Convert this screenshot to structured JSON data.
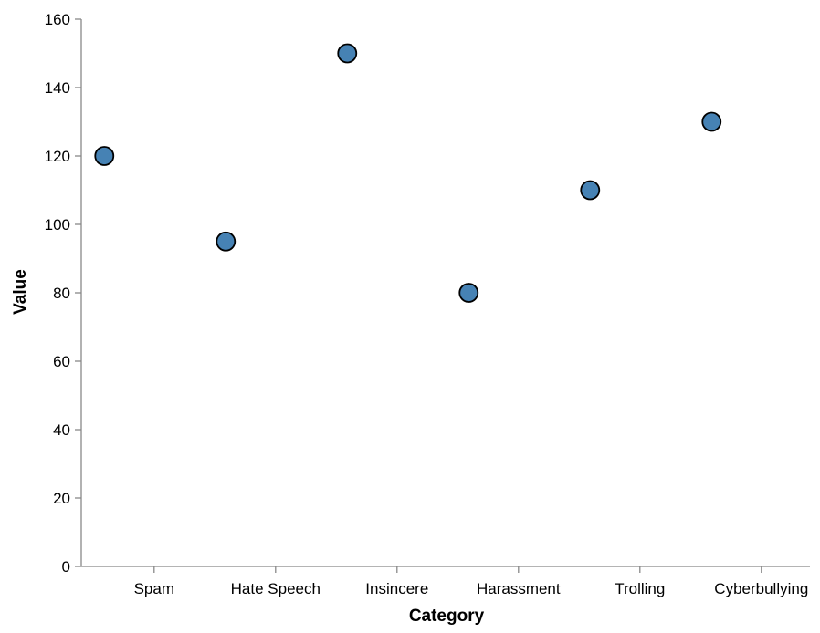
{
  "chart_data": {
    "type": "scatter",
    "xlabel": "Category",
    "ylabel": "Value",
    "categories": [
      "Spam",
      "Hate Speech",
      "Insincere",
      "Harassment",
      "Trolling",
      "Cyberbullying"
    ],
    "y_ticks": [
      "0",
      "20",
      "40",
      "60",
      "80",
      "100",
      "120",
      "140",
      "160"
    ],
    "ylim": [
      0,
      160
    ],
    "grid": false,
    "points": [
      {
        "category": "Spam",
        "value": 120
      },
      {
        "category": "Hate Speech",
        "value": 95
      },
      {
        "category": "Insincere",
        "value": 150
      },
      {
        "category": "Harassment",
        "value": 80
      },
      {
        "category": "Trolling",
        "value": 110
      },
      {
        "category": "Cyberbullying",
        "value": 130
      }
    ],
    "colors": {
      "point_fill": "#4682b4",
      "point_stroke": "#000000",
      "axis": "#888888"
    }
  }
}
